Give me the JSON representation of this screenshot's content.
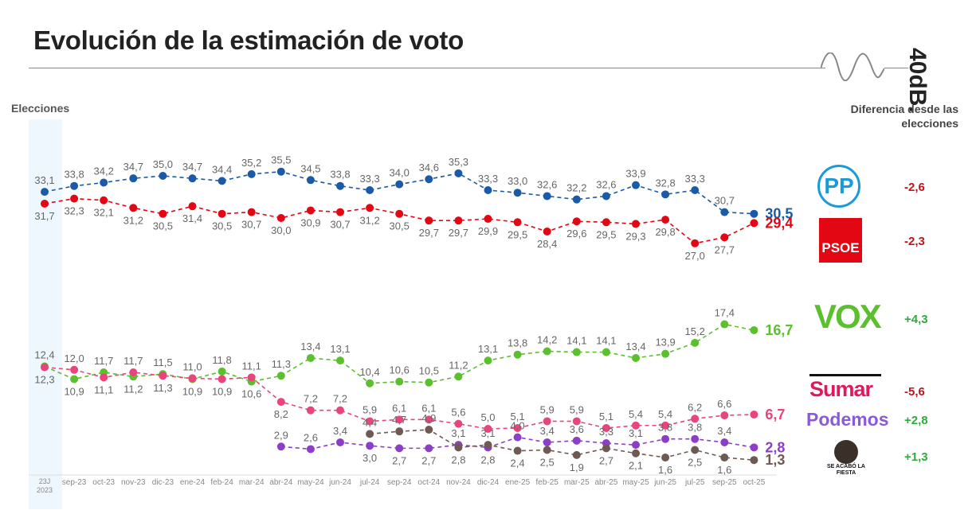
{
  "title": "Evolución de la estimación de voto",
  "brand": "40dB.",
  "elections_label": "Elecciones",
  "diff_header": "Diferencia desde las elecciones",
  "colors": {
    "PP": "#1a5aa6",
    "PSOE": "#e30613",
    "VOX": "#5bbf2e",
    "Sumar": "#e8457c",
    "Podemos": "#8b3fc6",
    "SALF": "#6e5a52"
  },
  "chart_data": {
    "type": "line",
    "title": "Evolución de la estimación de voto",
    "xlabel": "",
    "ylabel": "",
    "ylim": [
      0,
      36
    ],
    "categories": [
      "23J 2023",
      "sep-23",
      "oct-23",
      "nov-23",
      "dic-23",
      "ene-24",
      "feb-24",
      "mar-24",
      "abr-24",
      "may-24",
      "jun-24",
      "jul-24",
      "sep-24",
      "oct-24",
      "nov-24",
      "dic-24",
      "ene-25",
      "feb-25",
      "mar-25",
      "abr-25",
      "may-25",
      "jun-25",
      "jul-25",
      "sep-25",
      "oct-25"
    ],
    "series": [
      {
        "name": "PP",
        "values": [
          33.1,
          33.8,
          34.2,
          34.7,
          35.0,
          34.7,
          34.4,
          35.2,
          35.5,
          34.5,
          33.8,
          33.3,
          34.0,
          34.6,
          35.3,
          33.3,
          33.0,
          32.6,
          32.2,
          32.6,
          33.9,
          32.8,
          33.3,
          30.7,
          30.5
        ],
        "last_label": "30,5",
        "diff": "-2,6"
      },
      {
        "name": "PSOE",
        "values": [
          31.7,
          32.3,
          32.1,
          31.2,
          30.5,
          31.4,
          30.5,
          30.7,
          30.0,
          30.9,
          30.7,
          31.2,
          30.5,
          29.7,
          29.7,
          29.9,
          29.5,
          28.4,
          29.6,
          29.5,
          29.3,
          29.8,
          27.0,
          27.7,
          29.4
        ],
        "last_label": "29,4",
        "diff": "-2,3"
      },
      {
        "name": "VOX",
        "values": [
          12.4,
          10.9,
          11.7,
          11.2,
          11.5,
          10.9,
          11.8,
          10.6,
          11.3,
          13.4,
          13.1,
          10.4,
          10.6,
          10.5,
          11.2,
          13.1,
          13.8,
          14.2,
          14.1,
          14.1,
          13.4,
          13.9,
          15.2,
          17.4,
          16.7
        ],
        "last_label": "16,7",
        "diff": "+4,3"
      },
      {
        "name": "Sumar",
        "values": [
          12.3,
          12.0,
          11.1,
          11.7,
          11.3,
          11.0,
          10.9,
          11.1,
          8.2,
          7.2,
          7.2,
          5.9,
          6.1,
          6.1,
          5.6,
          5.0,
          5.1,
          5.9,
          5.9,
          5.1,
          5.4,
          5.4,
          6.2,
          6.6,
          6.7
        ],
        "last_label": "6,7",
        "diff": "-5,6"
      },
      {
        "name": "Podemos",
        "values": [
          null,
          null,
          null,
          null,
          null,
          null,
          null,
          null,
          2.9,
          2.6,
          3.4,
          3.0,
          2.7,
          2.7,
          3.1,
          2.8,
          4.0,
          3.4,
          3.6,
          3.3,
          3.1,
          3.8,
          3.8,
          3.4,
          2.8
        ],
        "last_label": "2,8",
        "diff": "+2,8"
      },
      {
        "name": "Se Acabó La Fiesta",
        "values": [
          null,
          null,
          null,
          null,
          null,
          null,
          null,
          null,
          null,
          null,
          null,
          4.4,
          4.7,
          4.9,
          2.8,
          3.1,
          2.4,
          2.5,
          1.9,
          2.7,
          2.1,
          1.6,
          2.5,
          1.6,
          1.3
        ],
        "last_label": "1,3",
        "diff": "+1,3"
      }
    ]
  },
  "logos": {
    "PP": "PP",
    "PSOE": "PSOE",
    "VOX": "VOX",
    "Sumar": "Sumar",
    "Podemos": "Podemos",
    "SALF": "SE ACABÓ LA FIESTA"
  }
}
